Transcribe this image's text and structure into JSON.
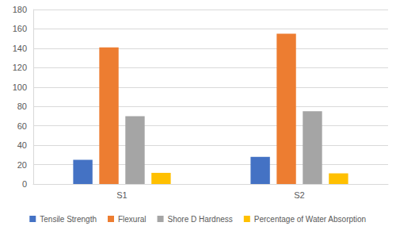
{
  "chart_data": {
    "type": "bar",
    "categories": [
      "S1",
      "S2"
    ],
    "series": [
      {
        "name": "Tensile Strength",
        "color": "#4472c4",
        "values": [
          25,
          28
        ]
      },
      {
        "name": "Flexural",
        "color": "#ed7d31",
        "values": [
          141,
          155
        ]
      },
      {
        "name": "Shore D Hardness",
        "color": "#a5a5a5",
        "values": [
          70,
          75
        ]
      },
      {
        "name": "Percentage of Water Absorption",
        "color": "#ffc000",
        "values": [
          11.5,
          11
        ]
      }
    ],
    "ylim": [
      0,
      180
    ],
    "yticks": [
      0,
      20,
      40,
      60,
      80,
      100,
      120,
      140,
      160,
      180
    ],
    "grid": true,
    "legend": "bottom"
  }
}
